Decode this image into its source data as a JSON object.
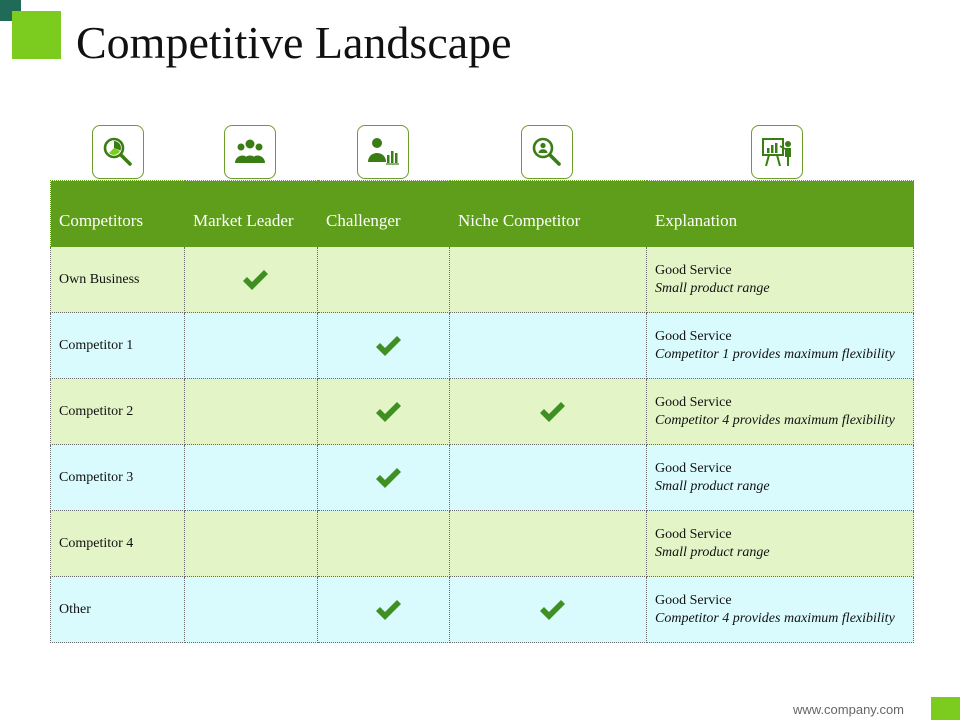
{
  "slide": {
    "title": "Competitive Landscape",
    "footer_url": "www.company.com",
    "accent_color": "#7ccc1f",
    "header_color": "#5e9e1a"
  },
  "icons": [
    "magnifier-chart-icon",
    "team-icon",
    "person-chart-icon",
    "search-person-icon",
    "presentation-icon"
  ],
  "table": {
    "headers": [
      "Competitors",
      "Market Leader",
      "Challenger",
      "Niche Competitor",
      "Explanation"
    ],
    "rows": [
      {
        "name": "Own Business",
        "market_leader": true,
        "challenger": false,
        "niche": false,
        "explanation": "Good Service",
        "detail": "Small product range"
      },
      {
        "name": "Competitor 1",
        "market_leader": false,
        "challenger": true,
        "niche": false,
        "explanation": "Good Service",
        "detail": "Competitor 1 provides maximum flexibility"
      },
      {
        "name": "Competitor 2",
        "market_leader": false,
        "challenger": true,
        "niche": true,
        "explanation": "Good Service",
        "detail": "Competitor 4 provides maximum flexibility"
      },
      {
        "name": "Competitor 3",
        "market_leader": false,
        "challenger": true,
        "niche": false,
        "explanation": "Good Service",
        "detail": "Small product range"
      },
      {
        "name": "Competitor 4",
        "market_leader": false,
        "challenger": false,
        "niche": false,
        "explanation": "Good Service",
        "detail": "Small product range"
      },
      {
        "name": "Other",
        "market_leader": false,
        "challenger": true,
        "niche": true,
        "explanation": "Good Service",
        "detail": "Competitor 4 provides maximum flexibility"
      }
    ]
  }
}
